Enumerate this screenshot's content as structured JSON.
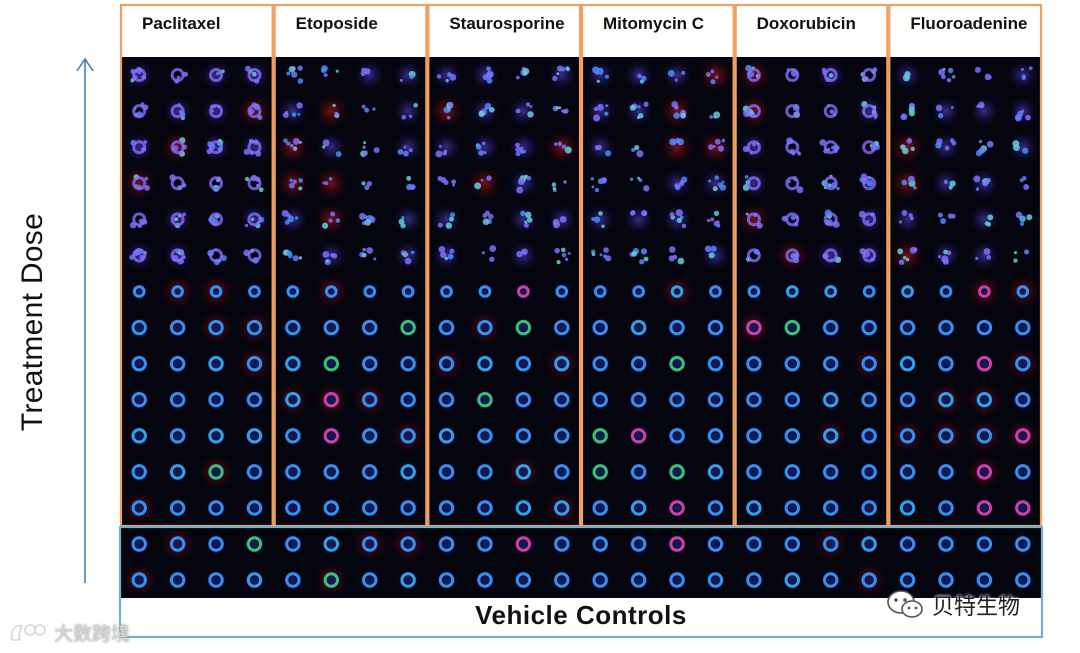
{
  "figure": {
    "y_axis_label": "Treatment Dose",
    "treated_rows": 13,
    "control_rows": 2,
    "wells_per_group": 4,
    "compounds": [
      {
        "name": "Paclitaxel"
      },
      {
        "name": "Etoposide"
      },
      {
        "name": "Staurosporine"
      },
      {
        "name": "Mitomycin  C"
      },
      {
        "name": "Doxorubicin"
      },
      {
        "name": "Fluoroadenine"
      }
    ],
    "vehicle_label": "Vehicle  Controls",
    "colors": {
      "treatment_border": "#f0a060",
      "vehicle_border": "#6fb3cf",
      "arrow": "#3e78a8",
      "well_background": "#05050f"
    }
  },
  "watermarks": {
    "right": {
      "icon": "wechat-icon",
      "text": "贝特生物"
    },
    "left": {
      "icon": "brand-logo-icon",
      "text": "大数跨境"
    }
  }
}
